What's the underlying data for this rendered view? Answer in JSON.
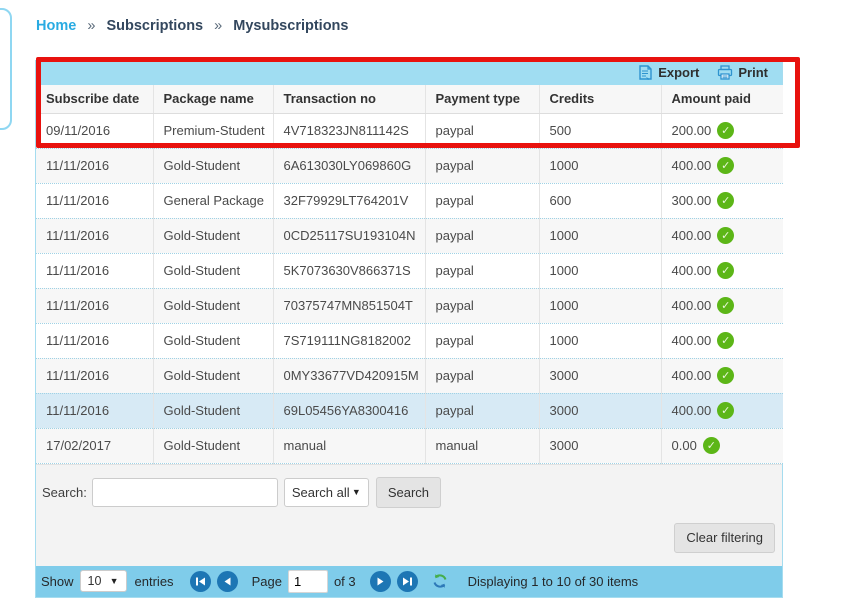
{
  "breadcrumb": {
    "separator": "»",
    "items": [
      {
        "label": "Home"
      },
      {
        "label": "Subscriptions"
      },
      {
        "label": "Mysubscriptions"
      }
    ]
  },
  "toolbar": {
    "export_label": "Export",
    "print_label": "Print"
  },
  "table": {
    "columns": [
      "Subscribe date",
      "Package name",
      "Transaction no",
      "Payment type",
      "Credits",
      "Amount paid"
    ],
    "rows": [
      {
        "subscribe_date": "09/11/2016",
        "package_name": "Premium-Student",
        "transaction_no": "4V718323JN811142S",
        "payment_type": "paypal",
        "credits": "500",
        "amount_paid": "200.00",
        "highlighted": false
      },
      {
        "subscribe_date": "11/11/2016",
        "package_name": "Gold-Student",
        "transaction_no": "6A613030LY069860G",
        "payment_type": "paypal",
        "credits": "1000",
        "amount_paid": "400.00",
        "highlighted": false
      },
      {
        "subscribe_date": "11/11/2016",
        "package_name": "General Package",
        "transaction_no": "32F79929LT764201V",
        "payment_type": "paypal",
        "credits": "600",
        "amount_paid": "300.00",
        "highlighted": false
      },
      {
        "subscribe_date": "11/11/2016",
        "package_name": "Gold-Student",
        "transaction_no": "0CD25117SU193104N",
        "payment_type": "paypal",
        "credits": "1000",
        "amount_paid": "400.00",
        "highlighted": false
      },
      {
        "subscribe_date": "11/11/2016",
        "package_name": "Gold-Student",
        "transaction_no": "5K7073630V866371S",
        "payment_type": "paypal",
        "credits": "1000",
        "amount_paid": "400.00",
        "highlighted": false
      },
      {
        "subscribe_date": "11/11/2016",
        "package_name": "Gold-Student",
        "transaction_no": "70375747MN851504T",
        "payment_type": "paypal",
        "credits": "1000",
        "amount_paid": "400.00",
        "highlighted": false
      },
      {
        "subscribe_date": "11/11/2016",
        "package_name": "Gold-Student",
        "transaction_no": "7S719111NG8182002",
        "payment_type": "paypal",
        "credits": "1000",
        "amount_paid": "400.00",
        "highlighted": false
      },
      {
        "subscribe_date": "11/11/2016",
        "package_name": "Gold-Student",
        "transaction_no": "0MY33677VD420915M",
        "payment_type": "paypal",
        "credits": "3000",
        "amount_paid": "400.00",
        "highlighted": false
      },
      {
        "subscribe_date": "11/11/2016",
        "package_name": "Gold-Student",
        "transaction_no": "69L05456YA8300416",
        "payment_type": "paypal",
        "credits": "3000",
        "amount_paid": "400.00",
        "highlighted": true
      },
      {
        "subscribe_date": "17/02/2017",
        "package_name": "Gold-Student",
        "transaction_no": "manual",
        "payment_type": "manual",
        "credits": "3000",
        "amount_paid": "0.00",
        "highlighted": false
      }
    ]
  },
  "search": {
    "label": "Search:",
    "input_value": "",
    "dropdown_value": "Search all",
    "search_button_label": "Search",
    "clear_button_label": "Clear filtering"
  },
  "pagination": {
    "show_label": "Show",
    "entries_value": "10",
    "entries_label": "entries",
    "page_label": "Page",
    "page_value": "1",
    "of_label": "of 3",
    "status": "Displaying 1 to 10 of 30 items"
  },
  "colors": {
    "accent_blue_bar": "#a0ddf2",
    "pagination_bar": "#7fccea",
    "breadcrumb_link": "#29abe2",
    "breadcrumb_text": "#33475e",
    "paid_check_green": "#5cb617",
    "nav_button_blue": "#1d76b4",
    "highlight_row": "#d7eaf5",
    "annotation_red": "#e8120e"
  }
}
